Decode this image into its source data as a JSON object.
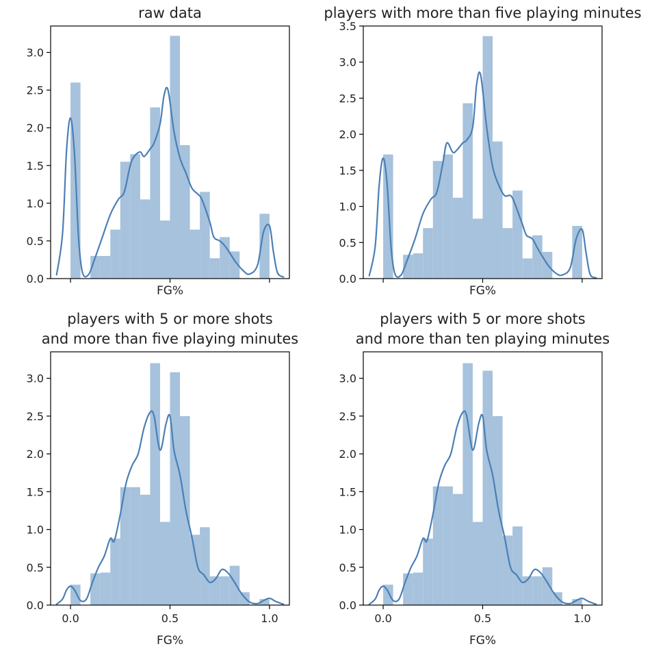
{
  "colors": {
    "bar": "#a6c2dc",
    "line": "#4a7fb5"
  },
  "chart_data": [
    {
      "type": "bar",
      "title": "raw data",
      "xlabel": "FG%",
      "ylabel": "",
      "xlim": [
        -0.1,
        1.1
      ],
      "ylim": [
        0,
        3.35
      ],
      "show_x_ticklabels": false,
      "x_ticks": [
        0.0,
        0.5,
        1.0
      ],
      "y_ticks": [
        "0.0",
        "0.5",
        "1.0",
        "1.5",
        "2.0",
        "2.5",
        "3.0"
      ],
      "bin_edges": [
        0.0,
        0.05,
        0.1,
        0.15,
        0.2,
        0.25,
        0.3,
        0.35,
        0.4,
        0.45,
        0.5,
        0.55,
        0.6,
        0.65,
        0.7,
        0.75,
        0.8,
        0.85,
        0.9,
        0.95,
        1.0
      ],
      "values": [
        2.6,
        0.0,
        0.3,
        0.3,
        0.65,
        1.55,
        1.65,
        1.05,
        2.27,
        0.77,
        3.22,
        1.77,
        0.65,
        1.15,
        0.27,
        0.55,
        0.36,
        0.0,
        0.0,
        0.86
      ],
      "kde": {
        "x": [
          -0.07,
          -0.04,
          -0.02,
          0.0,
          0.02,
          0.04,
          0.06,
          0.09,
          0.12,
          0.16,
          0.2,
          0.24,
          0.27,
          0.3,
          0.32,
          0.35,
          0.37,
          0.4,
          0.42,
          0.45,
          0.47,
          0.49,
          0.52,
          0.55,
          0.58,
          0.61,
          0.64,
          0.66,
          0.7,
          0.72,
          0.75,
          0.78,
          0.83,
          0.87,
          0.9,
          0.94,
          0.97,
          1.0,
          1.02,
          1.04,
          1.07
        ],
        "y": [
          0.05,
          0.6,
          1.7,
          2.13,
          1.65,
          0.55,
          0.08,
          0.05,
          0.25,
          0.55,
          0.85,
          1.05,
          1.15,
          1.5,
          1.62,
          1.68,
          1.62,
          1.72,
          1.8,
          2.05,
          2.43,
          2.5,
          1.95,
          1.6,
          1.4,
          1.2,
          1.12,
          1.05,
          0.75,
          0.55,
          0.5,
          0.42,
          0.22,
          0.1,
          0.06,
          0.18,
          0.62,
          0.7,
          0.35,
          0.08,
          0.02
        ]
      }
    },
    {
      "type": "bar",
      "title": "players with more than five playing minutes",
      "xlabel": "FG%",
      "ylabel": "",
      "xlim": [
        -0.1,
        1.1
      ],
      "ylim": [
        0,
        3.5
      ],
      "show_x_ticklabels": false,
      "x_ticks": [
        0.0,
        0.5,
        1.0
      ],
      "y_ticks": [
        "0.0",
        "0.5",
        "1.0",
        "1.5",
        "2.0",
        "2.5",
        "3.0",
        "3.5"
      ],
      "bin_edges": [
        0.0,
        0.05,
        0.1,
        0.15,
        0.2,
        0.25,
        0.3,
        0.35,
        0.4,
        0.45,
        0.5,
        0.55,
        0.6,
        0.65,
        0.7,
        0.75,
        0.8,
        0.85,
        0.9,
        0.95,
        1.0
      ],
      "values": [
        1.72,
        0.0,
        0.33,
        0.35,
        0.7,
        1.63,
        1.72,
        1.12,
        2.43,
        0.83,
        3.36,
        1.9,
        0.7,
        1.22,
        0.28,
        0.6,
        0.37,
        0.0,
        0.0,
        0.73
      ],
      "kde": {
        "x": [
          -0.07,
          -0.04,
          -0.02,
          0.0,
          0.02,
          0.04,
          0.06,
          0.09,
          0.12,
          0.16,
          0.2,
          0.24,
          0.27,
          0.3,
          0.32,
          0.35,
          0.37,
          0.4,
          0.42,
          0.45,
          0.47,
          0.49,
          0.52,
          0.55,
          0.58,
          0.61,
          0.64,
          0.66,
          0.7,
          0.72,
          0.75,
          0.78,
          0.83,
          0.87,
          0.9,
          0.94,
          0.97,
          1.0,
          1.02,
          1.04,
          1.07
        ],
        "y": [
          0.04,
          0.45,
          1.3,
          1.67,
          1.3,
          0.42,
          0.06,
          0.05,
          0.25,
          0.55,
          0.9,
          1.1,
          1.2,
          1.6,
          1.88,
          1.75,
          1.78,
          1.88,
          1.92,
          2.1,
          2.7,
          2.82,
          2.1,
          1.55,
          1.3,
          1.15,
          1.15,
          1.05,
          0.75,
          0.6,
          0.55,
          0.4,
          0.18,
          0.07,
          0.05,
          0.15,
          0.55,
          0.68,
          0.35,
          0.06,
          0.01
        ]
      }
    },
    {
      "type": "bar",
      "title": "players with 5 or more shots\nand more than five playing minutes",
      "xlabel": "FG%",
      "ylabel": "",
      "xlim": [
        -0.1,
        1.1
      ],
      "ylim": [
        0,
        3.35
      ],
      "show_x_ticklabels": true,
      "x_ticks": [
        0.0,
        0.5,
        1.0
      ],
      "x_ticklabels": [
        "0.0",
        "0.5",
        "1.0"
      ],
      "y_ticks": [
        "0.0",
        "0.5",
        "1.0",
        "1.5",
        "2.0",
        "2.5",
        "3.0"
      ],
      "bin_edges": [
        0.0,
        0.05,
        0.1,
        0.15,
        0.2,
        0.25,
        0.3,
        0.35,
        0.4,
        0.45,
        0.5,
        0.55,
        0.6,
        0.65,
        0.7,
        0.75,
        0.8,
        0.85,
        0.9,
        0.95,
        1.0
      ],
      "values": [
        0.27,
        0.0,
        0.42,
        0.43,
        0.88,
        1.56,
        1.56,
        1.46,
        3.2,
        1.1,
        3.08,
        2.5,
        0.93,
        1.03,
        0.38,
        0.38,
        0.52,
        0.17,
        0.0,
        0.08
      ],
      "kde": {
        "x": [
          -0.07,
          -0.04,
          -0.02,
          0.0,
          0.02,
          0.05,
          0.08,
          0.11,
          0.14,
          0.17,
          0.2,
          0.22,
          0.25,
          0.28,
          0.31,
          0.34,
          0.37,
          0.4,
          0.42,
          0.45,
          0.48,
          0.5,
          0.52,
          0.55,
          0.58,
          0.61,
          0.64,
          0.67,
          0.7,
          0.73,
          0.76,
          0.79,
          0.82,
          0.86,
          0.9,
          0.94,
          0.97,
          1.0,
          1.03,
          1.07
        ],
        "y": [
          0.01,
          0.08,
          0.2,
          0.25,
          0.2,
          0.06,
          0.08,
          0.3,
          0.5,
          0.65,
          0.88,
          0.85,
          1.2,
          1.62,
          1.85,
          2.0,
          2.35,
          2.55,
          2.5,
          2.05,
          2.4,
          2.5,
          2.05,
          1.72,
          1.25,
          0.9,
          0.5,
          0.4,
          0.3,
          0.35,
          0.47,
          0.43,
          0.32,
          0.15,
          0.04,
          0.02,
          0.06,
          0.09,
          0.05,
          0.01
        ]
      }
    },
    {
      "type": "bar",
      "title": "players with 5 or more shots\nand more than ten playing minutes",
      "xlabel": "FG%",
      "ylabel": "",
      "xlim": [
        -0.1,
        1.1
      ],
      "ylim": [
        0,
        3.35
      ],
      "show_x_ticklabels": true,
      "x_ticks": [
        0.0,
        0.5,
        1.0
      ],
      "x_ticklabels": [
        "0.0",
        "0.5",
        "1.0"
      ],
      "y_ticks": [
        "0.0",
        "0.5",
        "1.0",
        "1.5",
        "2.0",
        "2.5",
        "3.0"
      ],
      "bin_edges": [
        0.0,
        0.05,
        0.1,
        0.15,
        0.2,
        0.25,
        0.3,
        0.35,
        0.4,
        0.45,
        0.5,
        0.55,
        0.6,
        0.65,
        0.7,
        0.75,
        0.8,
        0.85,
        0.9,
        0.95,
        1.0
      ],
      "values": [
        0.27,
        0.0,
        0.42,
        0.43,
        0.88,
        1.57,
        1.57,
        1.47,
        3.2,
        1.1,
        3.1,
        2.5,
        0.92,
        1.04,
        0.38,
        0.38,
        0.5,
        0.17,
        0.0,
        0.08
      ],
      "kde": {
        "x": [
          -0.07,
          -0.04,
          -0.02,
          0.0,
          0.02,
          0.05,
          0.08,
          0.11,
          0.14,
          0.17,
          0.2,
          0.22,
          0.25,
          0.28,
          0.31,
          0.34,
          0.37,
          0.4,
          0.42,
          0.45,
          0.48,
          0.5,
          0.52,
          0.55,
          0.58,
          0.61,
          0.64,
          0.67,
          0.7,
          0.73,
          0.76,
          0.79,
          0.82,
          0.86,
          0.9,
          0.94,
          0.97,
          1.0,
          1.03,
          1.07
        ],
        "y": [
          0.01,
          0.08,
          0.2,
          0.25,
          0.2,
          0.06,
          0.08,
          0.3,
          0.5,
          0.65,
          0.88,
          0.85,
          1.2,
          1.62,
          1.85,
          2.0,
          2.35,
          2.55,
          2.5,
          2.05,
          2.4,
          2.5,
          2.05,
          1.72,
          1.25,
          0.9,
          0.5,
          0.4,
          0.3,
          0.35,
          0.47,
          0.43,
          0.32,
          0.15,
          0.04,
          0.02,
          0.06,
          0.09,
          0.05,
          0.01
        ]
      }
    }
  ]
}
